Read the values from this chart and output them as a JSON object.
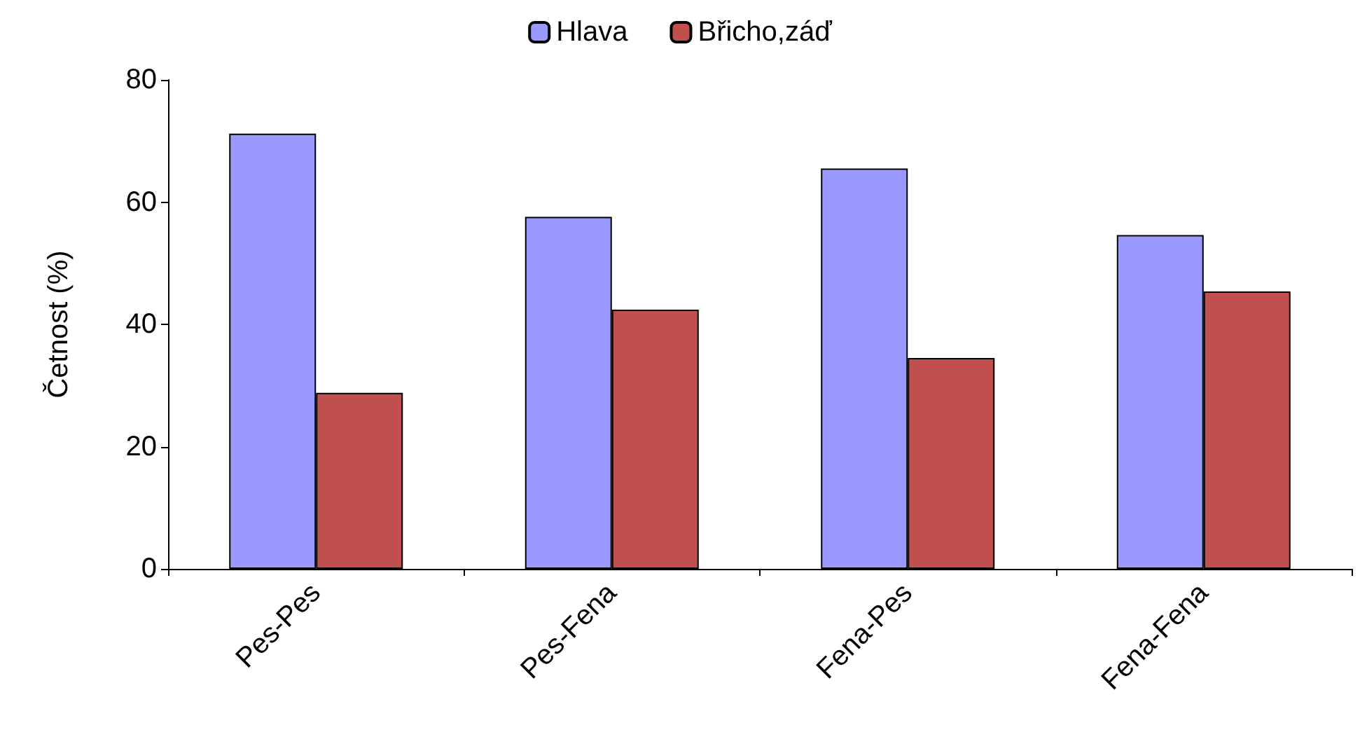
{
  "chart_data": {
    "type": "bar",
    "ylabel": "Četnost (%)",
    "categories": [
      "Pes-Pes",
      "Pes-Fena",
      "Fena-Pes",
      "Fena-Fena"
    ],
    "series": [
      {
        "name": "Hlava",
        "color": "#9999ff",
        "values": [
          71.2,
          57.6,
          65.5,
          54.6
        ]
      },
      {
        "name": "Břicho,záď",
        "color": "#c0504d",
        "values": [
          28.8,
          42.4,
          34.5,
          45.4
        ]
      }
    ],
    "ylim": [
      0,
      80
    ],
    "yticks": [
      0,
      20,
      40,
      60,
      80
    ],
    "grid": false,
    "legend": "top"
  }
}
